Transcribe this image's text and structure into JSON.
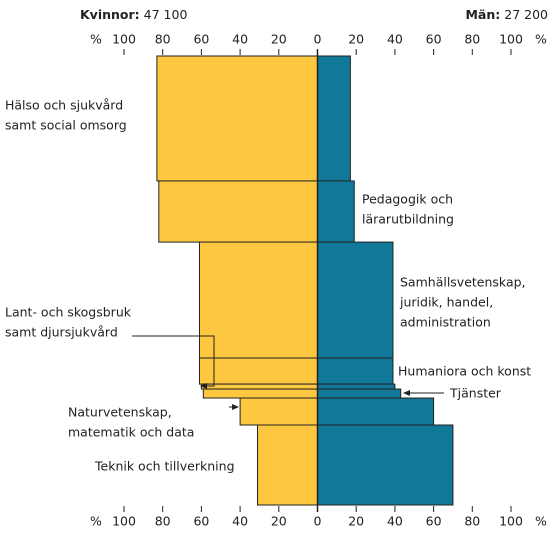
{
  "chart_data": {
    "type": "butterfly-mekko",
    "left_title": "Kvinnor:",
    "left_total": {
      "value": 47100,
      "label": "47 100"
    },
    "right_title": "Män:",
    "right_total": {
      "value": 27200,
      "label": "27 200"
    },
    "xlabel": "%",
    "xlim": [
      -100,
      100
    ],
    "xticks": [
      {
        "value": -100,
        "label": "100"
      },
      {
        "value": -80,
        "label": "80"
      },
      {
        "value": -60,
        "label": "60"
      },
      {
        "value": -40,
        "label": "40"
      },
      {
        "value": -20,
        "label": "20"
      },
      0,
      20,
      40,
      60,
      80,
      100
    ],
    "categories": [
      [
        "Hälso och sjukvård",
        "samt social omsorg"
      ],
      [
        "Pedagogik och",
        "lärarutbildning"
      ],
      [
        "Samhällsvetenskap,",
        "juridik, handel,",
        "administration"
      ],
      [
        "Humaniora och konst"
      ],
      [
        "Lant- och skogsbruk",
        "samt djursjukvård"
      ],
      [
        "Tjänster"
      ],
      [
        "Naturvetenskap,",
        "matematik och data"
      ],
      [
        "Teknik och tillverkning"
      ]
    ],
    "shares": [
      27.8,
      13.6,
      25.8,
      5.8,
      1.1,
      2.0,
      6.0,
      17.8
    ],
    "series": [
      {
        "name": "Kvinnor",
        "color": "#fdc840",
        "values": [
          83,
          82,
          61,
          61,
          60,
          59,
          40,
          31
        ]
      },
      {
        "name": "Män",
        "color": "#12789a",
        "values": [
          17,
          19,
          39,
          39,
          40,
          43,
          60,
          70
        ]
      }
    ]
  }
}
